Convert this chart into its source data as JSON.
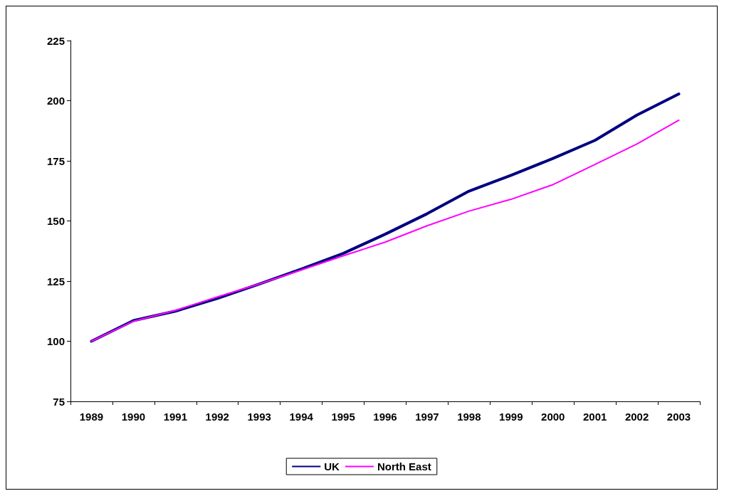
{
  "chart_data": {
    "type": "line",
    "categories": [
      "1989",
      "1990",
      "1991",
      "1992",
      "1993",
      "1994",
      "1995",
      "1996",
      "1997",
      "1998",
      "1999",
      "2000",
      "2001",
      "2002",
      "2003"
    ],
    "series": [
      {
        "name": "UK",
        "color": "#000080",
        "values": [
          100,
          108.6,
          112.5,
          117.8,
          123.8,
          130,
          136.5,
          144.5,
          153,
          162.4,
          169,
          176,
          183.5,
          194,
          202.8
        ]
      },
      {
        "name": "North East",
        "color": "#ff00ff",
        "values": [
          100,
          108.3,
          112.8,
          118.4,
          123.8,
          129.6,
          135.5,
          141.2,
          148,
          154.1,
          159,
          165.1,
          173.5,
          182,
          191.9
        ]
      }
    ],
    "ylim": [
      75,
      225
    ],
    "yticks": [
      75,
      100,
      125,
      150,
      175,
      200,
      225
    ],
    "grid": false,
    "legend": "bottom",
    "marker": "none",
    "line_style": "solid"
  }
}
